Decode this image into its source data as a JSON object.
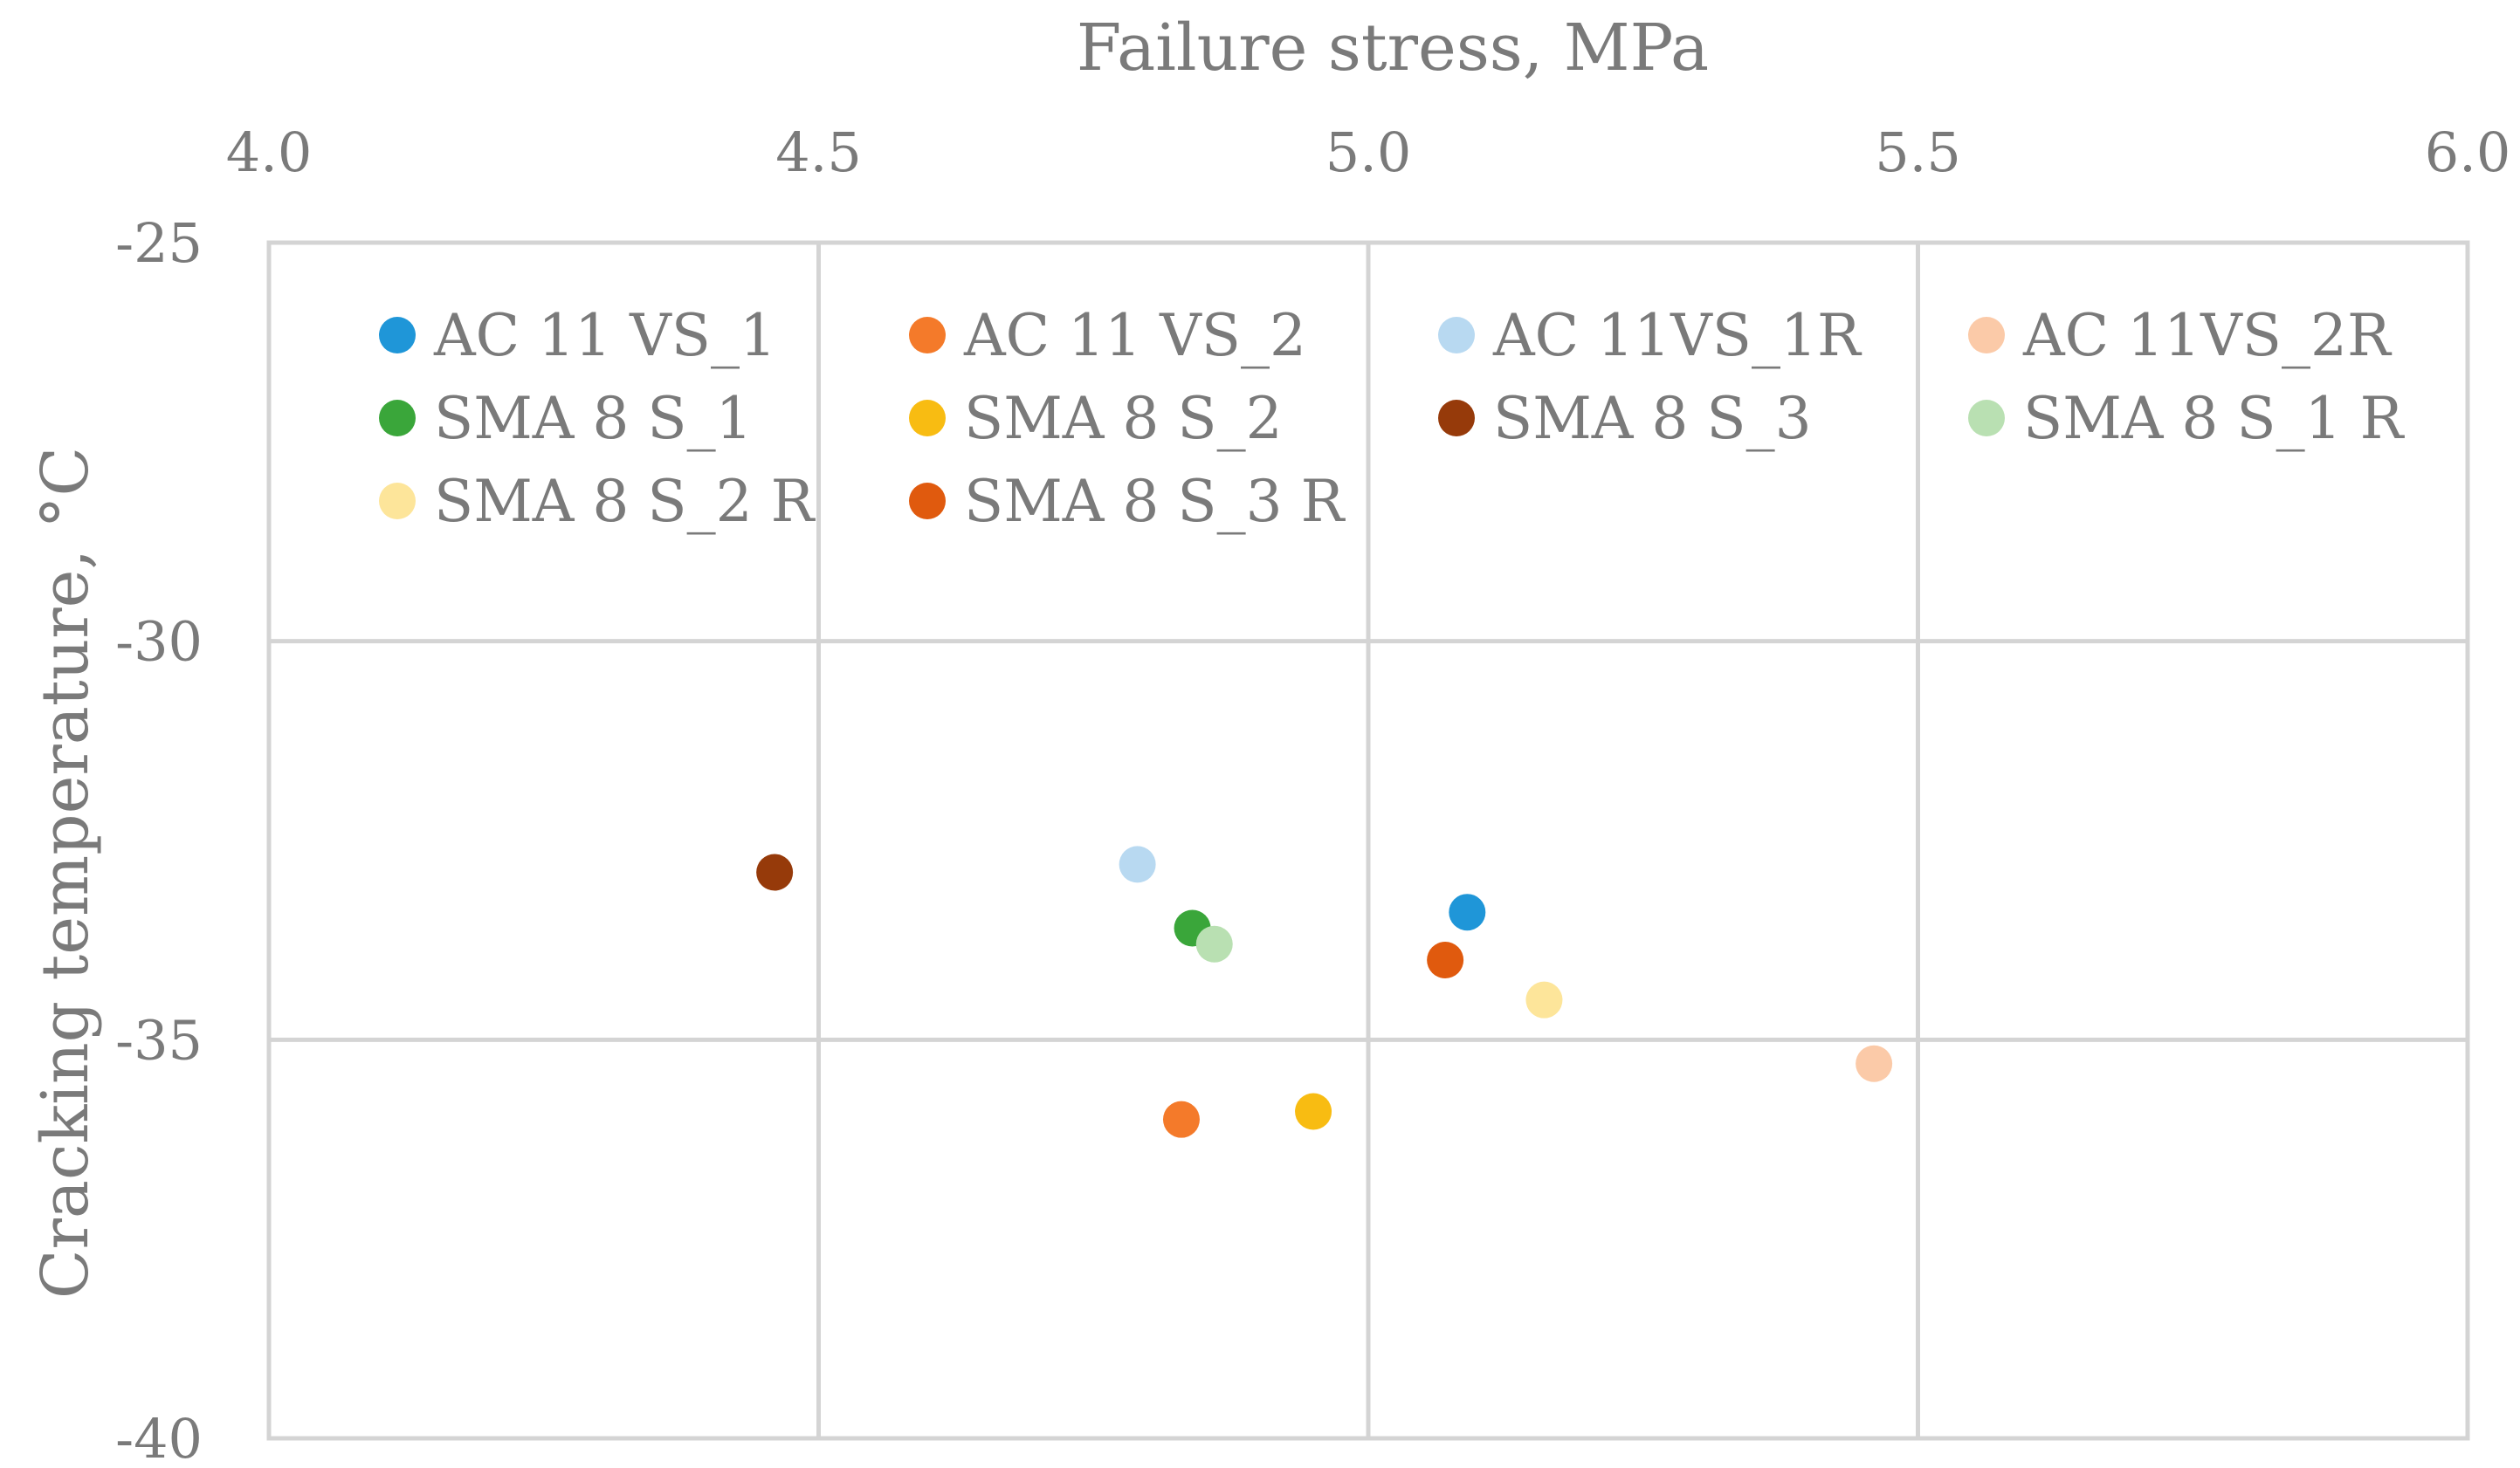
{
  "chart_data": {
    "type": "scatter",
    "title": "",
    "xlabel": "Failure stress, MPa",
    "ylabel": "Cracking temperature, °C",
    "xlim": [
      4.0,
      6.0
    ],
    "ylim": [
      -40,
      -25
    ],
    "x_ticks": [
      "4.0",
      "4.5",
      "5.0",
      "5.5",
      "6.0"
    ],
    "y_ticks": [
      "-25",
      "-30",
      "-35",
      "-40"
    ],
    "x_axis_position": "top",
    "grid": true,
    "legend_position": "top",
    "series": [
      {
        "name": "AC 11 VS_1",
        "color": "#1f96d8",
        "x": 5.09,
        "y": -33.4
      },
      {
        "name": "AC 11 VS_2",
        "color": "#f47a2a",
        "x": 4.83,
        "y": -36.0
      },
      {
        "name": "AC 11VS_1R",
        "color": "#b8d9f1",
        "x": 4.79,
        "y": -32.8
      },
      {
        "name": "AC 11VS_2R",
        "color": "#fbcaa8",
        "x": 5.46,
        "y": -35.3
      },
      {
        "name": "SMA 8 S_1",
        "color": "#3aa63a",
        "x": 4.84,
        "y": -33.6
      },
      {
        "name": "SMA 8 S_2",
        "color": "#f8bc12",
        "x": 4.95,
        "y": -35.9
      },
      {
        "name": "SMA 8 S_3",
        "color": "#963a0a",
        "x": 4.46,
        "y": -32.9
      },
      {
        "name": "SMA 8 S_1 R",
        "color": "#b9e0b2",
        "x": 4.86,
        "y": -33.8
      },
      {
        "name": "SMA 8 S_2 R",
        "color": "#fde59a",
        "x": 5.16,
        "y": -34.5
      },
      {
        "name": "SMA 8 S_3 R",
        "color": "#e05a0e",
        "x": 5.07,
        "y": -34.0
      }
    ]
  }
}
